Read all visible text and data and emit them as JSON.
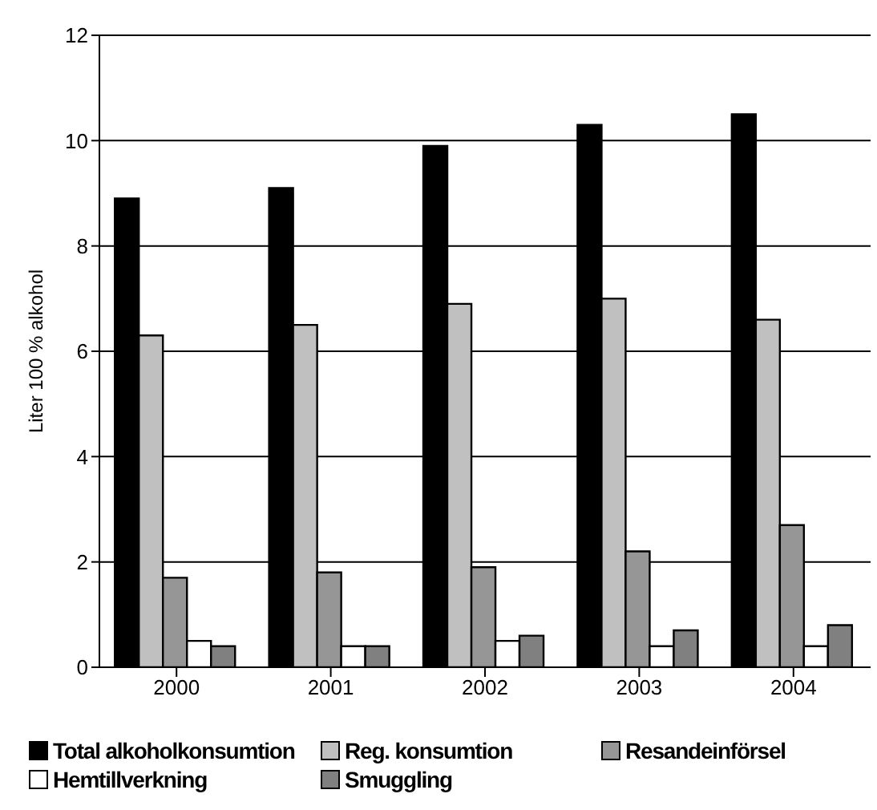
{
  "chart_data": {
    "type": "bar",
    "ylabel": "Liter 100 % alkohol",
    "categories": [
      "2000",
      "2001",
      "2002",
      "2003",
      "2004"
    ],
    "series": [
      {
        "name": "Total alkoholkonsumtion",
        "color": "#000000",
        "values": [
          8.9,
          9.1,
          9.9,
          10.3,
          10.5
        ]
      },
      {
        "name": "Reg. konsumtion",
        "color": "#c0c0c0",
        "values": [
          6.3,
          6.5,
          6.9,
          7.0,
          6.6
        ]
      },
      {
        "name": "Resandeinförsel",
        "color": "#969696",
        "values": [
          1.7,
          1.8,
          1.9,
          2.2,
          2.7
        ]
      },
      {
        "name": "Hemtillverkning",
        "color": "#ffffff",
        "values": [
          0.5,
          0.4,
          0.5,
          0.4,
          0.4
        ]
      },
      {
        "name": "Smuggling",
        "color": "#808080",
        "values": [
          0.4,
          0.4,
          0.6,
          0.7,
          0.8
        ]
      }
    ],
    "ylim": [
      0,
      12
    ],
    "yticks": [
      0,
      2,
      4,
      6,
      8,
      10,
      12
    ],
    "grid": "y",
    "legend": "bottom"
  }
}
